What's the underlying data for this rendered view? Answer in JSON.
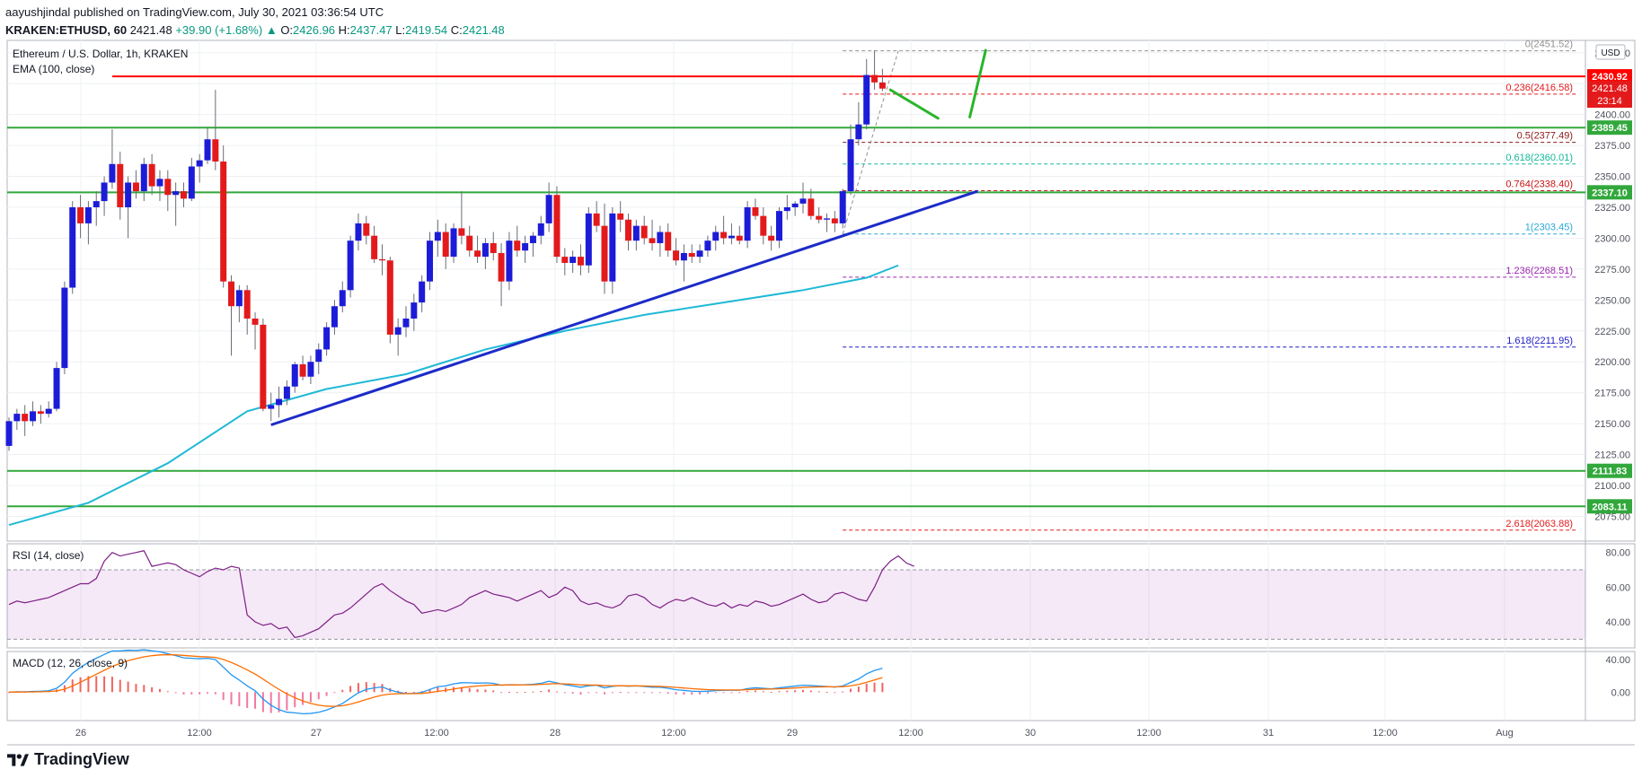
{
  "header": {
    "author": "aayushjindal",
    "published_prefix": "published on TradingView.com, July 30, 2021 03:36:54 UTC",
    "symbol_line": "KRAKEN:ETHUSD, 60",
    "last": "2421.48",
    "change": "+39.90 (+1.68%)",
    "open_label": "O:",
    "open": "2426.96",
    "high_label": "H:",
    "high": "2437.47",
    "low_label": "L:",
    "low": "2419.54",
    "close_label": "C:",
    "close": "2421.48"
  },
  "footer": {
    "brand": "TradingView"
  },
  "chart_data": {
    "type": "candlestick",
    "title": "Ethereum / U.S. Dollar, 1h, KRAKEN",
    "indicator_label": "EMA (100, close)",
    "currency_badge": "USD",
    "ylim": [
      2055,
      2460
    ],
    "y_ticks": [
      2075,
      2100,
      2125,
      2150,
      2175,
      2200,
      2225,
      2250,
      2275,
      2300,
      2325,
      2350,
      2375,
      2400,
      2425,
      2450
    ],
    "y_tick_labels": [
      "2075.00",
      "2100.00",
      "2125.00",
      "2150.00",
      "2175.00",
      "2200.00",
      "2225.00",
      "2250.00",
      "2275.00",
      "2300.00",
      "2325.00",
      "2350.00",
      "2375.00",
      "2400.00",
      "2425.00",
      "2450.00"
    ],
    "x_tick_labels": [
      "26",
      "12:00",
      "27",
      "12:00",
      "28",
      "12:00",
      "29",
      "12:00",
      "30",
      "12:00",
      "31",
      "12:00",
      "Aug"
    ],
    "colors": {
      "up": "#1c1cd8",
      "down": "#e31a1c",
      "ema": "#1fb9d6",
      "support": "#32a83c",
      "resistance": "#ff0000",
      "trendline": "#1c2bc8",
      "projection": "#2bb52b"
    },
    "candles": [
      [
        2132,
        2155,
        2128,
        2152
      ],
      [
        2152,
        2162,
        2145,
        2158
      ],
      [
        2158,
        2165,
        2140,
        2152
      ],
      [
        2152,
        2168,
        2148,
        2160
      ],
      [
        2160,
        2165,
        2150,
        2158
      ],
      [
        2158,
        2168,
        2155,
        2162
      ],
      [
        2162,
        2200,
        2160,
        2195
      ],
      [
        2195,
        2265,
        2190,
        2260
      ],
      [
        2260,
        2330,
        2255,
        2325
      ],
      [
        2325,
        2335,
        2300,
        2312
      ],
      [
        2312,
        2330,
        2295,
        2325
      ],
      [
        2325,
        2338,
        2310,
        2330
      ],
      [
        2330,
        2350,
        2318,
        2345
      ],
      [
        2345,
        2388,
        2340,
        2360
      ],
      [
        2360,
        2370,
        2315,
        2325
      ],
      [
        2325,
        2350,
        2300,
        2345
      ],
      [
        2345,
        2355,
        2332,
        2338
      ],
      [
        2338,
        2365,
        2330,
        2360
      ],
      [
        2360,
        2368,
        2335,
        2342
      ],
      [
        2342,
        2355,
        2330,
        2348
      ],
      [
        2348,
        2355,
        2322,
        2335
      ],
      [
        2335,
        2345,
        2310,
        2338
      ],
      [
        2338,
        2345,
        2325,
        2332
      ],
      [
        2332,
        2365,
        2330,
        2358
      ],
      [
        2358,
        2368,
        2345,
        2363
      ],
      [
        2363,
        2390,
        2360,
        2380
      ],
      [
        2380,
        2420,
        2355,
        2362
      ],
      [
        2362,
        2375,
        2260,
        2265
      ],
      [
        2265,
        2270,
        2205,
        2245
      ],
      [
        2245,
        2262,
        2232,
        2258
      ],
      [
        2258,
        2262,
        2222,
        2235
      ],
      [
        2235,
        2240,
        2210,
        2230
      ],
      [
        2230,
        2235,
        2160,
        2162
      ],
      [
        2162,
        2175,
        2152,
        2165
      ],
      [
        2165,
        2180,
        2155,
        2170
      ],
      [
        2170,
        2185,
        2165,
        2180
      ],
      [
        2180,
        2200,
        2175,
        2198
      ],
      [
        2198,
        2205,
        2185,
        2188
      ],
      [
        2188,
        2205,
        2182,
        2200
      ],
      [
        2200,
        2215,
        2190,
        2210
      ],
      [
        2210,
        2232,
        2205,
        2228
      ],
      [
        2228,
        2250,
        2222,
        2245
      ],
      [
        2245,
        2265,
        2240,
        2258
      ],
      [
        2258,
        2302,
        2252,
        2298
      ],
      [
        2298,
        2320,
        2290,
        2312
      ],
      [
        2312,
        2318,
        2295,
        2302
      ],
      [
        2302,
        2310,
        2280,
        2283
      ],
      [
        2283,
        2295,
        2270,
        2282
      ],
      [
        2282,
        2285,
        2215,
        2222
      ],
      [
        2222,
        2235,
        2205,
        2228
      ],
      [
        2228,
        2245,
        2220,
        2235
      ],
      [
        2235,
        2255,
        2225,
        2248
      ],
      [
        2248,
        2270,
        2240,
        2265
      ],
      [
        2265,
        2305,
        2258,
        2298
      ],
      [
        2298,
        2315,
        2285,
        2305
      ],
      [
        2305,
        2312,
        2275,
        2285
      ],
      [
        2285,
        2312,
        2280,
        2308
      ],
      [
        2308,
        2338,
        2295,
        2302
      ],
      [
        2302,
        2310,
        2285,
        2290
      ],
      [
        2290,
        2302,
        2280,
        2285
      ],
      [
        2285,
        2300,
        2275,
        2296
      ],
      [
        2296,
        2305,
        2282,
        2288
      ],
      [
        2288,
        2296,
        2245,
        2265
      ],
      [
        2265,
        2305,
        2258,
        2298
      ],
      [
        2298,
        2310,
        2285,
        2290
      ],
      [
        2290,
        2302,
        2280,
        2296
      ],
      [
        2296,
        2305,
        2285,
        2302
      ],
      [
        2302,
        2318,
        2295,
        2312
      ],
      [
        2312,
        2345,
        2305,
        2335
      ],
      [
        2335,
        2342,
        2280,
        2285
      ],
      [
        2285,
        2292,
        2270,
        2280
      ],
      [
        2280,
        2290,
        2272,
        2285
      ],
      [
        2285,
        2295,
        2270,
        2278
      ],
      [
        2278,
        2325,
        2272,
        2320
      ],
      [
        2320,
        2330,
        2305,
        2310
      ],
      [
        2310,
        2328,
        2255,
        2265
      ],
      [
        2265,
        2325,
        2255,
        2320
      ],
      [
        2320,
        2330,
        2305,
        2315
      ],
      [
        2315,
        2320,
        2290,
        2298
      ],
      [
        2298,
        2315,
        2290,
        2310
      ],
      [
        2310,
        2318,
        2295,
        2300
      ],
      [
        2300,
        2315,
        2290,
        2296
      ],
      [
        2296,
        2310,
        2285,
        2305
      ],
      [
        2305,
        2312,
        2285,
        2290
      ],
      [
        2290,
        2300,
        2278,
        2282
      ],
      [
        2282,
        2295,
        2265,
        2288
      ],
      [
        2288,
        2295,
        2280,
        2285
      ],
      [
        2285,
        2295,
        2280,
        2290
      ],
      [
        2290,
        2302,
        2285,
        2298
      ],
      [
        2298,
        2310,
        2290,
        2305
      ],
      [
        2305,
        2318,
        2295,
        2300
      ],
      [
        2300,
        2312,
        2295,
        2302
      ],
      [
        2302,
        2310,
        2295,
        2298
      ],
      [
        2298,
        2330,
        2292,
        2325
      ],
      [
        2325,
        2332,
        2315,
        2318
      ],
      [
        2318,
        2325,
        2295,
        2302
      ],
      [
        2302,
        2310,
        2290,
        2298
      ],
      [
        2298,
        2325,
        2292,
        2322
      ],
      [
        2322,
        2335,
        2315,
        2325
      ],
      [
        2325,
        2330,
        2318,
        2328
      ],
      [
        2328,
        2345,
        2320,
        2332
      ],
      [
        2332,
        2340,
        2315,
        2318
      ],
      [
        2318,
        2325,
        2312,
        2315
      ],
      [
        2315,
        2320,
        2305,
        2316
      ],
      [
        2316,
        2322,
        2305,
        2312
      ],
      [
        2312,
        2340,
        2308,
        2338
      ],
      [
        2338,
        2392,
        2335,
        2380
      ],
      [
        2380,
        2410,
        2375,
        2392
      ],
      [
        2392,
        2445,
        2388,
        2432
      ],
      [
        2432,
        2452,
        2420,
        2426
      ],
      [
        2426,
        2437,
        2419,
        2421
      ]
    ],
    "ema_100": [
      [
        0,
        2068
      ],
      [
        10,
        2086
      ],
      [
        20,
        2118
      ],
      [
        30,
        2160
      ],
      [
        40,
        2178
      ],
      [
        50,
        2190
      ],
      [
        60,
        2210
      ],
      [
        70,
        2225
      ],
      [
        80,
        2238
      ],
      [
        90,
        2248
      ],
      [
        100,
        2258
      ],
      [
        108,
        2268
      ],
      [
        112,
        2278
      ]
    ],
    "trendline": {
      "from": [
        33,
        2149
      ],
      "to": [
        122,
        2338
      ]
    },
    "horizontal_levels": [
      {
        "price": 2430.92,
        "label": "2430.92",
        "color": "#ff0000",
        "start": 13
      },
      {
        "price": 2389.45,
        "label": "2389.45",
        "color": "#32a83c",
        "start": 0
      },
      {
        "price": 2337.1,
        "label": "2337.10",
        "color": "#32a83c",
        "start": 0
      },
      {
        "price": 2111.83,
        "label": "2111.83",
        "color": "#32a83c",
        "start": 0
      },
      {
        "price": 2083.11,
        "label": "2083.11",
        "color": "#32a83c",
        "start": 0
      }
    ],
    "price_tag": {
      "price": 2421.48,
      "label": "2421.48",
      "countdown": "23:14"
    },
    "fib_levels": [
      {
        "ratio": "0",
        "price": 2451.52,
        "color": "#909090"
      },
      {
        "ratio": "0.236",
        "price": 2416.58,
        "color": "#e31a1c"
      },
      {
        "ratio": "0.5",
        "price": 2377.49,
        "color": "#8b1a1a"
      },
      {
        "ratio": "0.618",
        "price": 2360.01,
        "color": "#14b89a"
      },
      {
        "ratio": "0.764",
        "price": 2338.4,
        "color": "#c81414"
      },
      {
        "ratio": "1",
        "price": 2303.45,
        "color": "#2aa7d6"
      },
      {
        "ratio": "1.236",
        "price": 2268.51,
        "color": "#9c27b0"
      },
      {
        "ratio": "1.618",
        "price": 2211.95,
        "color": "#1c1cc8"
      },
      {
        "ratio": "2.618",
        "price": 2063.88,
        "color": "#e31a1c"
      }
    ],
    "projection_path": [
      [
        111,
        2420
      ],
      [
        117,
        2397
      ],
      [
        121,
        2398
      ],
      [
        123,
        2452
      ]
    ],
    "rsi": {
      "label": "RSI (14, close)",
      "ylim": [
        25,
        85
      ],
      "ticks": [
        "80.00",
        "60.00",
        "40.00"
      ],
      "tick_values": [
        80,
        60,
        40
      ],
      "band": [
        30,
        70
      ],
      "values": [
        50,
        52,
        51,
        52,
        53,
        54,
        56,
        58,
        60,
        62,
        62,
        65,
        75,
        80,
        78,
        79,
        80,
        81,
        72,
        73,
        74,
        73,
        70,
        68,
        66,
        69,
        71,
        70,
        72,
        71,
        44,
        40,
        38,
        39,
        36,
        37,
        31,
        32,
        34,
        36,
        40,
        44,
        45,
        48,
        52,
        56,
        60,
        62,
        58,
        55,
        52,
        50,
        45,
        46,
        47,
        46,
        48,
        50,
        54,
        56,
        58,
        56,
        55,
        54,
        52,
        54,
        56,
        58,
        54,
        56,
        60,
        58,
        52,
        50,
        51,
        49,
        48,
        50,
        55,
        56,
        54,
        50,
        48,
        51,
        53,
        52,
        54,
        52,
        50,
        49,
        51,
        48,
        50,
        49,
        52,
        51,
        49,
        50,
        52,
        54,
        56,
        53,
        51,
        52,
        56,
        57,
        55,
        53,
        52,
        60,
        70,
        75,
        78,
        74,
        72
      ]
    },
    "macd": {
      "label": "MACD (12, 26, close, 9)",
      "ylim": [
        -35,
        50
      ],
      "ticks": [
        "40.00",
        "0.00"
      ],
      "tick_values": [
        40,
        0
      ]
    }
  }
}
